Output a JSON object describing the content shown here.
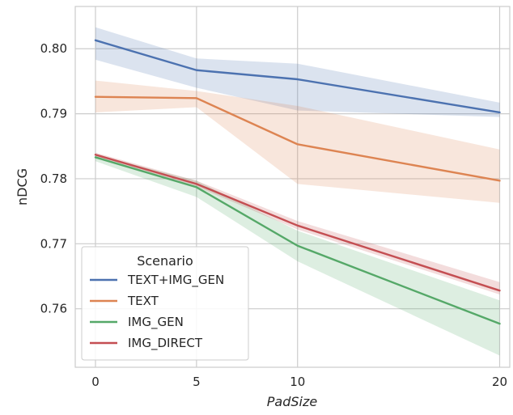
{
  "chart_data": {
    "type": "line",
    "xlabel": "PadSize",
    "ylabel": "nDCG",
    "x": [
      0,
      5,
      10,
      20
    ],
    "xticks": [
      "0",
      "5",
      "10",
      "20"
    ],
    "yticks": [
      "0.76",
      "0.77",
      "0.78",
      "0.79",
      "0.80"
    ],
    "ytick_values": [
      0.76,
      0.77,
      0.78,
      0.79,
      0.8
    ],
    "xlim": [
      -1,
      20.5
    ],
    "ylim": [
      0.751,
      0.8065
    ],
    "grid": true,
    "legend": {
      "title": "Scenario",
      "placement": "lower-left"
    },
    "series": [
      {
        "name": "TEXT+IMG_GEN",
        "color": "#4c72b0",
        "values": [
          0.8013,
          0.7967,
          0.7953,
          0.7902
        ],
        "lower": [
          0.7983,
          0.794,
          0.7905,
          0.7895
        ],
        "upper": [
          0.8033,
          0.7985,
          0.7977,
          0.7917
        ]
      },
      {
        "name": "TEXT",
        "color": "#dd8452",
        "values": [
          0.7926,
          0.7924,
          0.7853,
          0.7797
        ],
        "lower": [
          0.7902,
          0.791,
          0.7792,
          0.7763
        ],
        "upper": [
          0.7951,
          0.7935,
          0.7912,
          0.7845
        ]
      },
      {
        "name": "IMG_GEN",
        "color": "#55a868",
        "values": [
          0.7833,
          0.7787,
          0.7697,
          0.7577
        ],
        "lower": [
          0.7827,
          0.7772,
          0.7673,
          0.7528
        ],
        "upper": [
          0.7837,
          0.7797,
          0.772,
          0.7613
        ]
      },
      {
        "name": "IMG_DIRECT",
        "color": "#c44e52",
        "values": [
          0.7837,
          0.7792,
          0.7728,
          0.7628
        ],
        "lower": [
          0.7833,
          0.7788,
          0.7722,
          0.7622
        ],
        "upper": [
          0.784,
          0.7797,
          0.7735,
          0.7641
        ]
      }
    ]
  }
}
